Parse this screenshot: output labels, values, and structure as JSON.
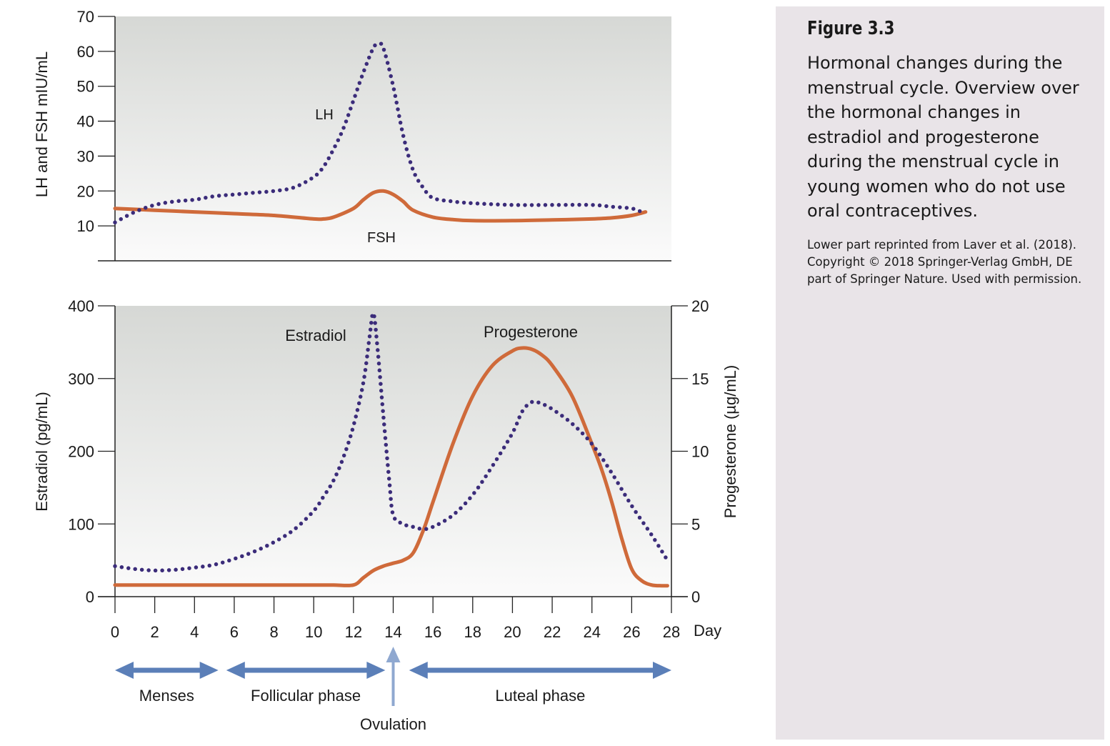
{
  "chart_data": [
    {
      "type": "line",
      "ylabel": "LH and FSH mIU/mL",
      "ylim": [
        0,
        70
      ],
      "yticks": [
        10,
        20,
        30,
        40,
        50,
        60,
        70
      ],
      "xlim": [
        0,
        28
      ],
      "grid": false,
      "series": [
        {
          "name": "LH",
          "style": "dotted",
          "color": "#3b2c7a",
          "x": [
            0,
            1,
            2,
            3,
            4,
            5,
            6,
            7,
            8,
            9,
            10,
            10.5,
            11,
            11.5,
            12,
            12.5,
            13,
            13.25,
            13.5,
            14,
            14.5,
            15,
            15.5,
            16,
            17,
            18,
            20,
            22,
            24,
            25,
            26,
            26.5
          ],
          "values": [
            11,
            14,
            16,
            17,
            17.5,
            18.5,
            19,
            19.5,
            20,
            21,
            24,
            27,
            32,
            38,
            46,
            54,
            61,
            62,
            61,
            50,
            36,
            26,
            21,
            18,
            17,
            16.5,
            16,
            16,
            16,
            15.5,
            15,
            14
          ]
        },
        {
          "name": "FSH",
          "style": "solid",
          "color": "#cf6a3a",
          "x": [
            0,
            2,
            4,
            6,
            8,
            10,
            10.5,
            11,
            12,
            12.5,
            13,
            13.5,
            14,
            14.5,
            15,
            16,
            17,
            18,
            20,
            22,
            24,
            25,
            26,
            26.7
          ],
          "values": [
            15,
            14.5,
            14,
            13.5,
            13,
            12,
            12,
            12.5,
            15,
            17.5,
            19.5,
            20,
            19,
            17,
            14.5,
            12.5,
            11.8,
            11.5,
            11.5,
            11.7,
            12,
            12.3,
            13,
            14
          ]
        }
      ],
      "annotations": [
        "LH",
        "FSH"
      ]
    },
    {
      "type": "line",
      "xlabel": "Day",
      "xlim": [
        0,
        28
      ],
      "xticks": [
        0,
        2,
        4,
        6,
        8,
        10,
        12,
        14,
        16,
        18,
        20,
        22,
        24,
        26,
        28
      ],
      "ylabel": "Estradiol (pg/mL)",
      "ylim": [
        0,
        400
      ],
      "yticks": [
        0,
        100,
        200,
        300,
        400
      ],
      "y2label": "Progesterone (µg/mL)",
      "y2lim": [
        0,
        20
      ],
      "y2ticks": [
        0,
        5,
        10,
        15,
        20
      ],
      "grid": false,
      "series": [
        {
          "name": "Estradiol",
          "axis": "left",
          "style": "dotted",
          "color": "#3b2c7a",
          "x": [
            0,
            1,
            2,
            3,
            4,
            5,
            6,
            7,
            8,
            9,
            10,
            10.5,
            11,
            11.5,
            12,
            12.5,
            12.8,
            13,
            13.2,
            13.5,
            13.8,
            14,
            14.5,
            15,
            15.5,
            16,
            17,
            18,
            19,
            20,
            20.5,
            21,
            21.5,
            22,
            23,
            24,
            25,
            26,
            27,
            27.8
          ],
          "values": [
            42,
            38,
            36,
            37,
            40,
            44,
            52,
            62,
            75,
            92,
            118,
            138,
            160,
            192,
            235,
            295,
            355,
            390,
            345,
            250,
            160,
            112,
            100,
            96,
            93,
            96,
            112,
            140,
            180,
            225,
            255,
            268,
            265,
            258,
            238,
            210,
            170,
            125,
            85,
            50
          ]
        },
        {
          "name": "Progesterone",
          "axis": "right",
          "style": "solid",
          "color": "#cf6a3a",
          "x": [
            0,
            2,
            4,
            6,
            8,
            10,
            11,
            12,
            12.5,
            13,
            13.5,
            14,
            14.5,
            15,
            15.5,
            16,
            17,
            18,
            19,
            20,
            20.5,
            21,
            21.5,
            22,
            23,
            24,
            24.5,
            25,
            25.5,
            26,
            26.5,
            27,
            27.5,
            27.8
          ],
          "values": [
            0.8,
            0.8,
            0.8,
            0.8,
            0.8,
            0.8,
            0.8,
            0.8,
            1.3,
            1.8,
            2.1,
            2.3,
            2.5,
            3.0,
            4.5,
            6.5,
            10.5,
            13.8,
            15.9,
            16.9,
            17.1,
            17.0,
            16.6,
            15.9,
            13.8,
            10.5,
            8.7,
            6.5,
            4.0,
            1.9,
            1.1,
            0.8,
            0.75,
            0.75
          ]
        }
      ],
      "annotations": [
        "Estradiol",
        "Progesterone"
      ]
    }
  ],
  "phases": [
    {
      "label": "Menses",
      "from": 0,
      "to": 5.2
    },
    {
      "label": "Follicular phase",
      "from": 5.6,
      "to": 13.6
    },
    {
      "label": "Luteal phase",
      "from": 14.8,
      "to": 28
    }
  ],
  "ovulation": {
    "label": "Ovulation",
    "day": 14
  },
  "colors": {
    "dotted_series": "#3b2c7a",
    "solid_series": "#cf6a3a",
    "phase_arrow": "#5b7fb8",
    "ovulation_arrow": "#8fa8d0",
    "caption_bg": "#e9e4e8"
  },
  "caption": {
    "title": "Figure 3.3",
    "text": "Hormonal changes during the menstrual cycle. Overview over the hormonal changes in estradiol and progesterone during the menstrual cycle in young women who do not use oral contraceptives.",
    "credit": "Lower part reprinted from Laver et al. (2018). Copyright © 2018 Springer-Verlag GmbH, DE part of Springer Nature. Used with permission."
  }
}
